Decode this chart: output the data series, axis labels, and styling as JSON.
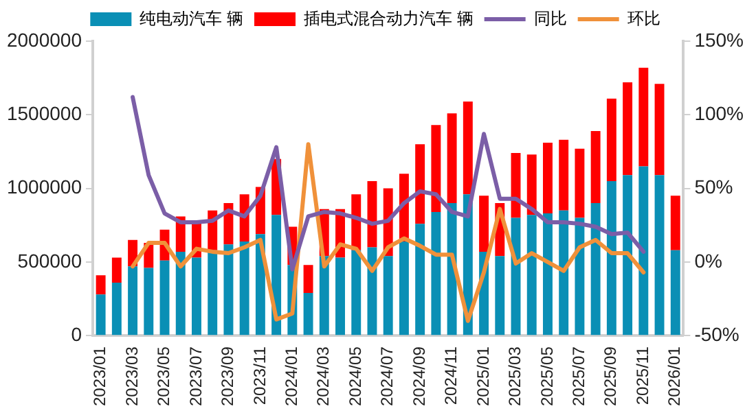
{
  "chart_data": {
    "type": "bar",
    "stacked": true,
    "legend": "top",
    "categories": [
      "2023/01",
      null,
      "2023/03",
      null,
      "2023/05",
      null,
      "2023/07",
      null,
      "2023/09",
      null,
      "2023/11",
      null,
      "2024/01",
      null,
      "2024/03",
      null,
      "2024/05",
      null,
      "2024/07",
      null,
      "2024/09",
      null,
      "2024/11",
      null,
      "2025/01",
      null,
      "2025/03",
      null,
      "2025/05",
      null,
      "2025/07",
      null,
      "2025/09",
      null,
      "2025/11",
      null,
      "2026/01"
    ],
    "ylim": [
      0,
      2000000
    ],
    "yticks": [
      0,
      500000,
      1000000,
      1500000,
      2000000
    ],
    "y2lim": [
      -50,
      150
    ],
    "y2ticks": [
      {
        "value": -50,
        "label": "-50%"
      },
      {
        "value": 0,
        "label": "0%"
      },
      {
        "value": 50,
        "label": "50%"
      },
      {
        "value": 100,
        "label": "100%"
      },
      {
        "value": 150,
        "label": "150%"
      }
    ],
    "series": [
      {
        "name": "纯电动汽车 辆",
        "color": "#0a8fb5",
        "values": [
          280000,
          360000,
          470000,
          460000,
          510000,
          570000,
          530000,
          580000,
          620000,
          640000,
          690000,
          820000,
          480000,
          290000,
          540000,
          530000,
          580000,
          600000,
          540000,
          640000,
          760000,
          840000,
          900000,
          960000,
          570000,
          540000,
          800000,
          820000,
          830000,
          850000,
          800000,
          900000,
          1050000,
          1090000,
          1150000,
          1090000,
          580000
        ]
      },
      {
        "name": "插电式混合动力汽车 辆",
        "color": "#ff0000",
        "values": [
          130000,
          170000,
          180000,
          170000,
          210000,
          240000,
          250000,
          270000,
          280000,
          320000,
          320000,
          380000,
          260000,
          190000,
          320000,
          330000,
          380000,
          450000,
          460000,
          460000,
          540000,
          590000,
          610000,
          630000,
          380000,
          360000,
          440000,
          410000,
          480000,
          480000,
          470000,
          490000,
          560000,
          630000,
          670000,
          620000,
          370000
        ]
      },
      {
        "name": "同比",
        "type": "line",
        "axis": "y2",
        "color": "#7b5ea7",
        "values": [
          null,
          null,
          112,
          59,
          33,
          27,
          27,
          28,
          35,
          31,
          45,
          78,
          -5,
          31,
          34,
          33,
          30,
          26,
          28,
          40,
          48,
          46,
          34,
          31,
          87,
          43,
          43,
          36,
          27,
          27,
          26,
          24,
          19,
          20,
          7,
          null,
          null
        ]
      },
      {
        "name": "环比",
        "type": "line",
        "axis": "y2",
        "color": "#f0913a",
        "values": [
          null,
          null,
          -3,
          13,
          13,
          -3,
          9,
          7,
          6,
          10,
          15,
          -39,
          -35,
          80,
          -3,
          12,
          9,
          -6,
          10,
          16,
          11,
          5,
          5,
          -40,
          -7,
          36,
          -1,
          6,
          0,
          -6,
          10,
          15,
          6,
          6,
          -7,
          null,
          null
        ]
      }
    ]
  }
}
